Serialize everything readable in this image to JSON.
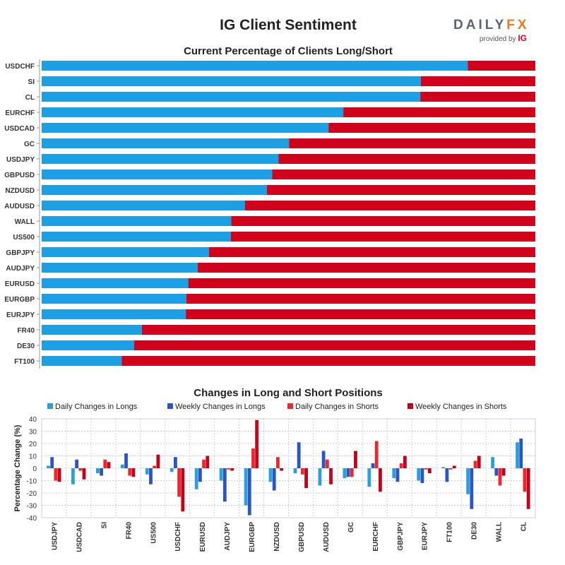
{
  "header": {
    "title": "IG Client Sentiment",
    "logo_word_a": "DAILY",
    "logo_word_b": "FX",
    "logo_provided": "provided by",
    "logo_ig": "IG"
  },
  "colors": {
    "long": "#1d9fe3",
    "short": "#d0021b",
    "daily_long": "#2a9fdc",
    "weekly_long": "#2c55c4",
    "daily_short": "#f0262e",
    "weekly_short": "#c4001b"
  },
  "chart_data": [
    {
      "type": "bar",
      "orientation": "horizontal",
      "stacked": true,
      "title": "Current Percentage of Clients Long/Short",
      "categories": [
        "USDCHF",
        "SI",
        "CL",
        "EURCHF",
        "USDCAD",
        "GC",
        "USDJPY",
        "GBPUSD",
        "NZDUSD",
        "AUDUSD",
        "WALL",
        "US500",
        "GBPJPY",
        "AUDJPY",
        "EURUSD",
        "EURGBP",
        "EURJPY",
        "FR40",
        "DE30",
        "FT100"
      ],
      "series": [
        {
          "name": "Long",
          "values": [
            86.3,
            76.8,
            76.7,
            61.1,
            58.1,
            50.1,
            48.0,
            46.7,
            45.6,
            41.2,
            38.4,
            38.3,
            33.9,
            31.6,
            29.7,
            29.3,
            29.2,
            20.3,
            18.7,
            16.2
          ]
        },
        {
          "name": "Short",
          "values": [
            13.7,
            23.2,
            23.3,
            38.9,
            41.9,
            49.9,
            52.0,
            53.3,
            54.4,
            58.8,
            61.6,
            61.7,
            66.1,
            68.4,
            70.3,
            70.7,
            70.8,
            79.7,
            81.3,
            83.8
          ]
        }
      ],
      "xlim": [
        0,
        100
      ]
    },
    {
      "type": "bar",
      "title": "Changes in Long and Short Positions",
      "ylabel": "Percentage Change (%)",
      "xlabel": "",
      "ylim": [
        -40,
        40
      ],
      "yticks": [
        40,
        30,
        20,
        10,
        0,
        -10,
        -20,
        -30,
        -40
      ],
      "grid": true,
      "legend": "top",
      "categories": [
        "USDJPY",
        "USDCAD",
        "SI",
        "FR40",
        "US500",
        "USDCHF",
        "EURUSD",
        "AUDJPY",
        "EURGBP",
        "NZDUSD",
        "GBPUSD",
        "AUDUSD",
        "GC",
        "EURCHF",
        "GBPJPY",
        "EURJPY",
        "FT100",
        "DE30",
        "WALL",
        "CL"
      ],
      "series": [
        {
          "name": "Daily Changes in Longs",
          "values": [
            2,
            -13,
            -4,
            3,
            -5,
            -3,
            -17,
            -10,
            -30,
            -11,
            -4,
            -14,
            -8,
            -15,
            -8,
            -10,
            1,
            -21,
            9,
            21
          ]
        },
        {
          "name": "Weekly Changes in Longs",
          "values": [
            9,
            7,
            -6,
            12,
            -13,
            9,
            -11,
            -27,
            -38,
            -18,
            21,
            14,
            -7,
            4,
            -11,
            -12,
            -11,
            -33,
            -6,
            24
          ]
        },
        {
          "name": "Daily Changes in Shorts",
          "values": [
            -10,
            -2,
            7,
            -6,
            2,
            -23,
            7,
            -1,
            16,
            9,
            -5,
            7,
            -7,
            22,
            4,
            -1,
            -1,
            6,
            -14,
            -19
          ]
        },
        {
          "name": "Weekly Changes in Shorts",
          "values": [
            -11,
            -9,
            5,
            -7,
            11,
            -35,
            10,
            -2,
            39,
            -2,
            -16,
            -13,
            14,
            -19,
            10,
            -4,
            2,
            10,
            -6,
            -33
          ]
        }
      ]
    }
  ]
}
